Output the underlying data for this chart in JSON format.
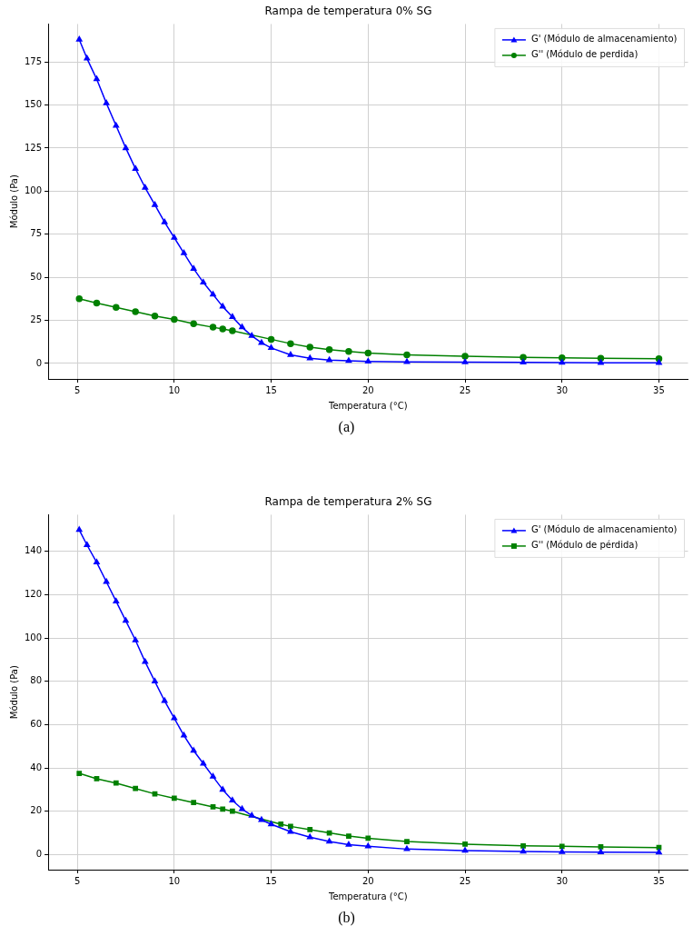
{
  "chart_data": [
    {
      "type": "line",
      "title": "Rampa de temperatura 0% SG",
      "xlabel": "Temperatura (°C)",
      "ylabel": "Módulo (Pa)",
      "xlim": [
        3.5,
        36.5
      ],
      "xticks": [
        5,
        10,
        15,
        20,
        25,
        30,
        35
      ],
      "ylim": [
        -9,
        197
      ],
      "yticks": [
        0,
        25,
        50,
        75,
        100,
        125,
        150,
        175
      ],
      "grid": true,
      "legend": "top right",
      "line_style": "solid",
      "annotations": [
        "(a)"
      ],
      "series": [
        {
          "name": "G' (Módulo de almacenamiento)",
          "color": "#0000ff",
          "marker": "triangle",
          "x": [
            5.1,
            5.5,
            6,
            6.5,
            7,
            7.5,
            8,
            8.5,
            9,
            9.5,
            10,
            10.5,
            11,
            11.5,
            12,
            12.5,
            13,
            13.5,
            14,
            14.5,
            15,
            16,
            17,
            18,
            19,
            20,
            22,
            25,
            28,
            30,
            32,
            35
          ],
          "values": [
            188,
            177,
            165,
            151,
            138,
            125,
            113,
            102,
            92,
            82,
            73,
            64,
            55,
            47,
            40,
            33,
            27,
            21,
            16,
            12,
            9,
            5,
            3,
            2,
            1.5,
            1.2,
            0.9,
            0.7,
            0.6,
            0.5,
            0.4,
            0.4
          ]
        },
        {
          "name": "G'' (Módulo de perdida)",
          "color": "#008000",
          "marker": "circle",
          "x": [
            5.1,
            6,
            7,
            8,
            9,
            10,
            11,
            12,
            12.5,
            13,
            15,
            16,
            17,
            18,
            19,
            20,
            22,
            25,
            28,
            30,
            32,
            35
          ],
          "values": [
            37.5,
            35,
            32.5,
            30,
            27.5,
            25.5,
            23,
            21,
            20,
            19,
            14,
            11.5,
            9.5,
            8,
            7,
            6,
            5,
            4.2,
            3.5,
            3.2,
            3,
            2.7
          ]
        }
      ]
    },
    {
      "type": "line",
      "title": "Rampa de temperatura 2% SG",
      "xlabel": "Temperatura (°C)",
      "ylabel": "Módulo (Pa)",
      "xlim": [
        3.5,
        36.5
      ],
      "xticks": [
        5,
        10,
        15,
        20,
        25,
        30,
        35
      ],
      "ylim": [
        -7,
        157
      ],
      "yticks": [
        0,
        20,
        40,
        60,
        80,
        100,
        120,
        140
      ],
      "grid": true,
      "legend": "top right",
      "line_style": "solid",
      "annotations": [
        "(b)"
      ],
      "series": [
        {
          "name": "G' (Módulo de almacenamiento)",
          "color": "#0000ff",
          "marker": "triangle",
          "x": [
            5.1,
            5.5,
            6,
            6.5,
            7,
            7.5,
            8,
            8.5,
            9,
            9.5,
            10,
            10.5,
            11,
            11.5,
            12,
            12.5,
            13,
            13.5,
            14,
            14.5,
            15,
            16,
            17,
            18,
            19,
            20,
            22,
            25,
            28,
            30,
            32,
            35
          ],
          "values": [
            150,
            143,
            135,
            126,
            117,
            108,
            99,
            89,
            80,
            71,
            63,
            55,
            48,
            42,
            36,
            30,
            25,
            21,
            18,
            16,
            14,
            10.5,
            8,
            6,
            4.5,
            3.8,
            2.5,
            1.8,
            1.4,
            1.2,
            1.1,
            1
          ]
        },
        {
          "name": "G'' (Módulo de pérdida)",
          "color": "#008000",
          "marker": "square",
          "x": [
            5.1,
            6,
            7,
            8,
            9,
            10,
            11,
            12,
            12.5,
            13,
            15.5,
            16,
            17,
            18,
            19,
            20,
            22,
            25,
            28,
            30,
            32,
            35
          ],
          "values": [
            37.5,
            35,
            33,
            30.5,
            28,
            26,
            24,
            22,
            21,
            20,
            14,
            13,
            11.5,
            10,
            8.5,
            7.5,
            6,
            4.8,
            4,
            3.8,
            3.5,
            3.2
          ]
        }
      ]
    }
  ]
}
